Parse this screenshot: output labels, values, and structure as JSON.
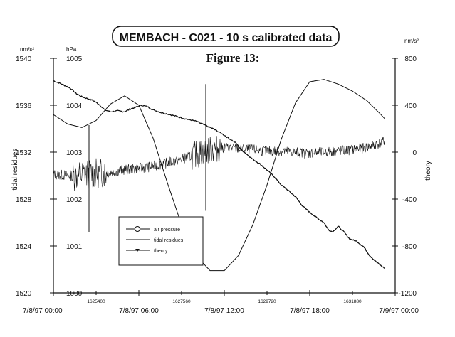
{
  "title": "MEMBACH - C021 -  10 s calibrated data",
  "figure_label": "Figure 13:",
  "chart_data": {
    "type": "line",
    "grid": false,
    "legend_position": "lower-left",
    "legend": [
      "air pressure",
      "tidal residues",
      "theory"
    ],
    "x_tick_labels": [
      "7/8/97 00:00",
      "7/8/97 06:00",
      "7/8/97 12:00",
      "7/8/97 18:00",
      "7/9/97 00:00"
    ],
    "x_secondary_tick_labels": [
      "1625400",
      "1627560",
      "1629720",
      "1631880"
    ],
    "x_range_hours": [
      0,
      24
    ],
    "axes": {
      "tidal_residues": {
        "label": "tidal residues",
        "unit": "nm/s²",
        "ticks": [
          "1540",
          "1536",
          "1532",
          "1528",
          "1524",
          "1520"
        ],
        "range": [
          1520,
          1540
        ]
      },
      "air_pressure": {
        "label": "",
        "unit": "hPa",
        "ticks": [
          "1005",
          "1004",
          "1003",
          "1002",
          "1001",
          "1000"
        ],
        "range": [
          1000,
          1005
        ]
      },
      "theory": {
        "label": "theory",
        "unit": "nm/s²",
        "ticks": [
          "800",
          "400",
          "0",
          "-400",
          "-800",
          "-1200"
        ],
        "range": [
          -1200,
          800
        ]
      }
    },
    "series": [
      {
        "name": "air pressure",
        "axis": "air_pressure",
        "points": [
          [
            0,
            1004.52
          ],
          [
            0.6,
            1004.45
          ],
          [
            1.2,
            1004.36
          ],
          [
            1.6,
            1004.25
          ],
          [
            2.0,
            1004.18
          ],
          [
            2.4,
            1004.14
          ],
          [
            2.8,
            1004.1
          ],
          [
            3.2,
            1004.02
          ],
          [
            3.6,
            1003.9
          ],
          [
            4.0,
            1003.86
          ],
          [
            4.5,
            1003.88
          ],
          [
            5.0,
            1003.86
          ],
          [
            5.4,
            1003.92
          ],
          [
            5.8,
            1003.96
          ],
          [
            6.2,
            1004.0
          ],
          [
            6.6,
            1003.97
          ],
          [
            7.0,
            1003.9
          ],
          [
            7.6,
            1003.84
          ],
          [
            8.2,
            1003.8
          ],
          [
            8.8,
            1003.75
          ],
          [
            9.4,
            1003.7
          ],
          [
            10.0,
            1003.66
          ],
          [
            10.6,
            1003.58
          ],
          [
            11.2,
            1003.5
          ],
          [
            11.8,
            1003.4
          ],
          [
            12.3,
            1003.3
          ],
          [
            12.8,
            1003.2
          ],
          [
            13.2,
            1003.05
          ],
          [
            13.6,
            1002.95
          ],
          [
            14.0,
            1002.85
          ],
          [
            14.5,
            1002.75
          ],
          [
            15.0,
            1002.62
          ],
          [
            15.5,
            1002.48
          ],
          [
            16.0,
            1002.3
          ],
          [
            16.5,
            1002.18
          ],
          [
            17.0,
            1002.05
          ],
          [
            17.5,
            1001.85
          ],
          [
            18.0,
            1001.72
          ],
          [
            18.5,
            1001.6
          ],
          [
            19.0,
            1001.5
          ],
          [
            19.3,
            1001.35
          ],
          [
            19.6,
            1001.3
          ],
          [
            20.0,
            1001.42
          ],
          [
            20.4,
            1001.3
          ],
          [
            20.8,
            1001.15
          ],
          [
            21.3,
            1001.1
          ],
          [
            21.8,
            1000.98
          ],
          [
            22.2,
            1000.8
          ],
          [
            22.6,
            1000.68
          ],
          [
            23.0,
            1000.58
          ],
          [
            23.3,
            1000.52
          ]
        ]
      },
      {
        "name": "tidal residues",
        "axis": "tidal_residues",
        "points": [
          [
            0,
            1530.1
          ],
          [
            1.5,
            1530.0
          ],
          [
            3.0,
            1530.2
          ],
          [
            4.0,
            1530.3
          ],
          [
            5.0,
            1530.5
          ],
          [
            6.0,
            1530.6
          ],
          [
            7.0,
            1530.8
          ],
          [
            8.0,
            1531.1
          ],
          [
            9.0,
            1531.4
          ],
          [
            10.0,
            1531.8
          ],
          [
            11.0,
            1532.2
          ],
          [
            12.0,
            1532.4
          ],
          [
            13.0,
            1532.3
          ],
          [
            14.0,
            1532.2
          ],
          [
            15.0,
            1532.1
          ],
          [
            16.0,
            1532.1
          ],
          [
            17.0,
            1532.0
          ],
          [
            18.0,
            1531.9
          ],
          [
            19.0,
            1532.0
          ],
          [
            20.0,
            1532.1
          ],
          [
            21.0,
            1532.2
          ],
          [
            22.0,
            1532.4
          ],
          [
            23.0,
            1532.8
          ],
          [
            23.3,
            1533.0
          ]
        ],
        "spikes": [
          [
            2.5,
            1534.3,
            1525.2
          ],
          [
            10.7,
            1537.8,
            1527.0
          ]
        ]
      },
      {
        "name": "theory",
        "axis": "theory",
        "points": [
          [
            0,
            320
          ],
          [
            1,
            240
          ],
          [
            2,
            210
          ],
          [
            3,
            270
          ],
          [
            4,
            410
          ],
          [
            5,
            480
          ],
          [
            6,
            400
          ],
          [
            7,
            120
          ],
          [
            8,
            -260
          ],
          [
            9,
            -620
          ],
          [
            10,
            -880
          ],
          [
            11,
            -1010
          ],
          [
            12,
            -1010
          ],
          [
            13,
            -880
          ],
          [
            14,
            -620
          ],
          [
            15,
            -280
          ],
          [
            16,
            110
          ],
          [
            17,
            420
          ],
          [
            18,
            600
          ],
          [
            19,
            620
          ],
          [
            20,
            580
          ],
          [
            21,
            520
          ],
          [
            22,
            440
          ],
          [
            23,
            320
          ],
          [
            23.3,
            280
          ]
        ]
      }
    ]
  }
}
